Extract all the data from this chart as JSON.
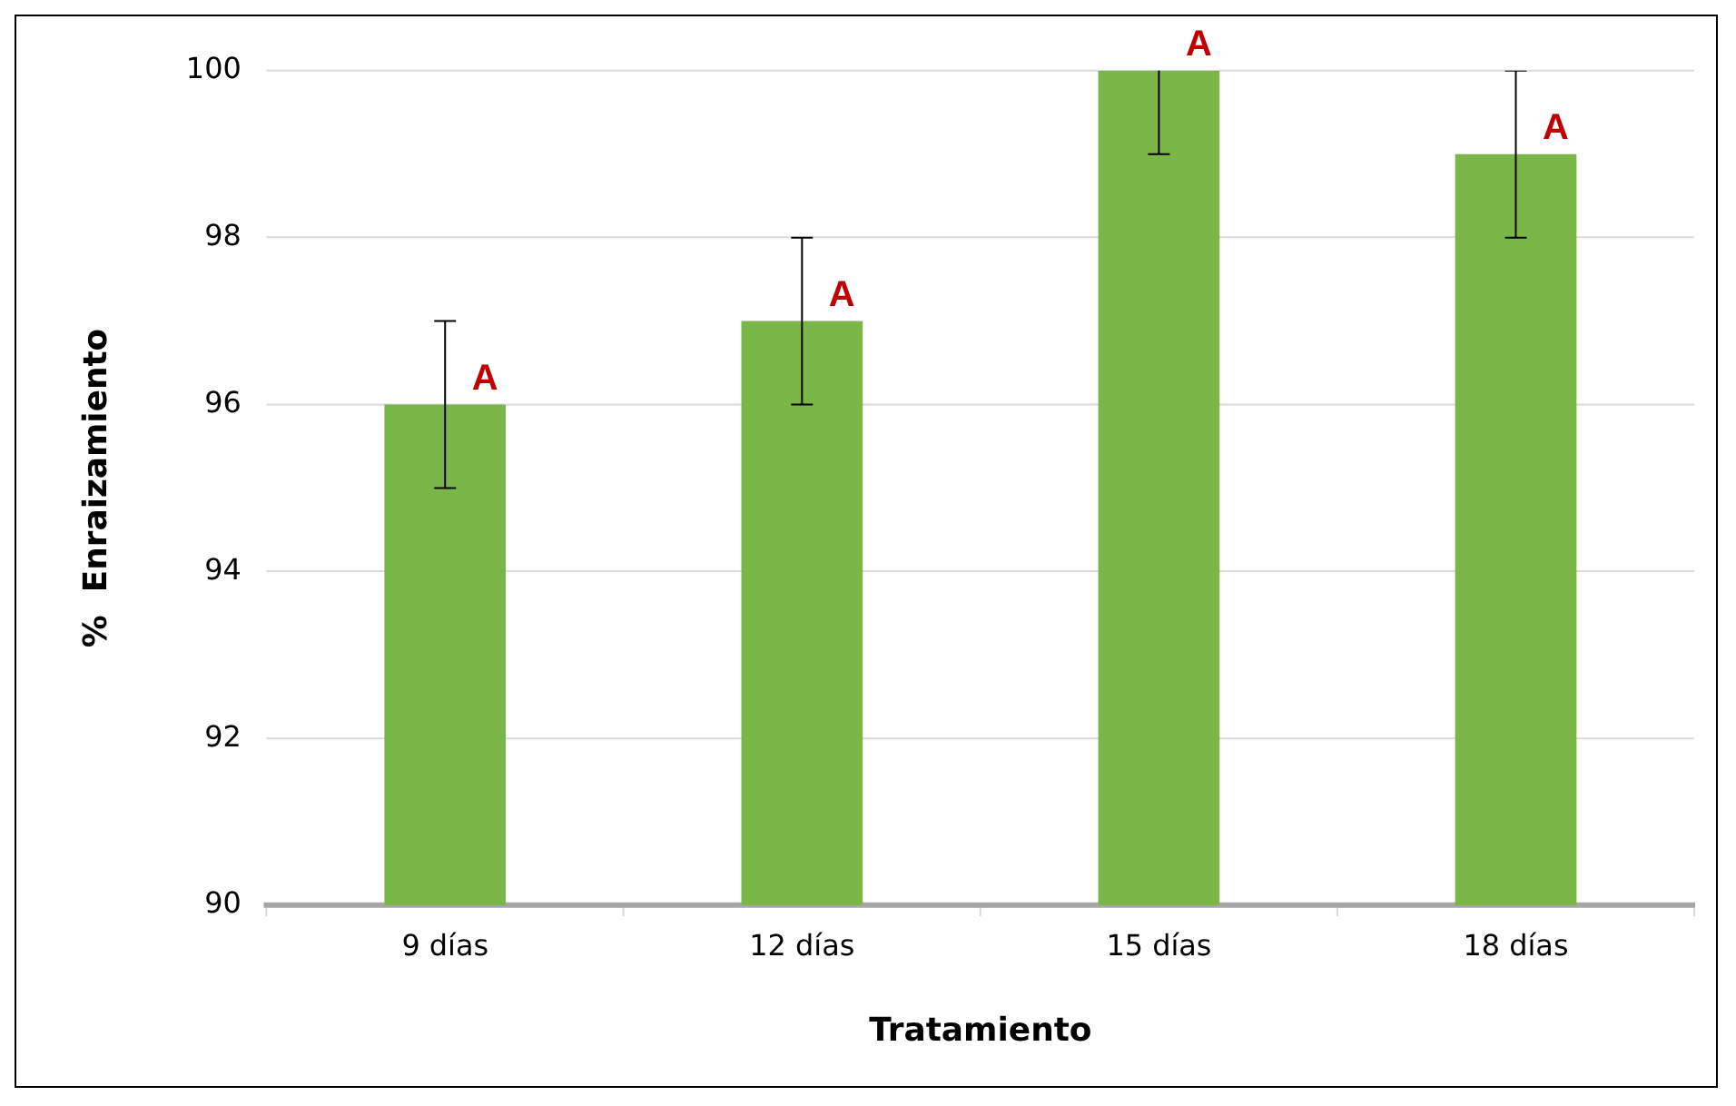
{
  "chart_data": {
    "type": "bar",
    "xlabel": "Tratamiento",
    "ylabel": "%  Enraizamiento",
    "categories": [
      "9 días",
      "12 días",
      "15 días",
      "18 días"
    ],
    "values": [
      96,
      97,
      100,
      99
    ],
    "errors": [
      1,
      1,
      1,
      1
    ],
    "color": "#7ab648",
    "ylim": [
      90,
      100
    ],
    "yticks": [
      90,
      92,
      94,
      96,
      98,
      100
    ],
    "grid": "y",
    "legend": false,
    "annotations": [
      {
        "text": "A",
        "x": "9 días",
        "y": 96
      },
      {
        "text": "A",
        "x": "12 días",
        "y": 97
      },
      {
        "text": "A",
        "x": "15 días",
        "y": 100
      },
      {
        "text": "A",
        "x": "18 días",
        "y": 99
      }
    ]
  }
}
